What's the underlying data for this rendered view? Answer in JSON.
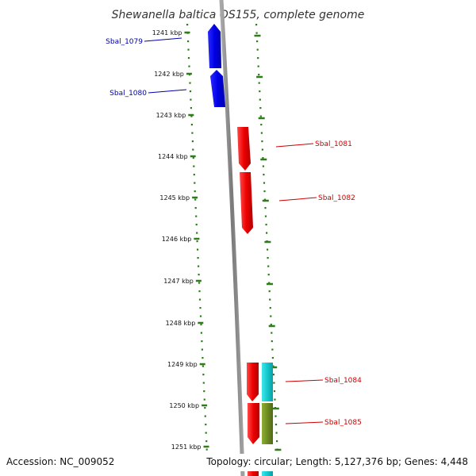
{
  "title": "Shewanella baltica OS155, complete genome",
  "footer": {
    "accession": "Accession: NC_009052",
    "topology": "Topology: circular; Length: 5,127,376 bp; Genes: 4,448"
  },
  "colors": {
    "tick": "#2e7d1a",
    "backbone": "#8c8c8c",
    "forward_gene": "#0000ee",
    "reverse_gene": "#ee0000",
    "teal_gene": "#14c8cc",
    "olive_gene": "#6e8c22",
    "forward_label": "#0000aa",
    "reverse_label": "#cc0000"
  },
  "ticks": [
    "1241 kbp",
    "1242 kbp",
    "1243 kbp",
    "1244 kbp",
    "1245 kbp",
    "1246 kbp",
    "1247 kbp",
    "1248 kbp",
    "1249 kbp",
    "1250 kbp",
    "1251 kbp"
  ],
  "gene_labels": [
    {
      "text": "Sbal_1079",
      "strand": "forward"
    },
    {
      "text": "Sbal_1080",
      "strand": "forward"
    },
    {
      "text": "Sbal_1081",
      "strand": "reverse"
    },
    {
      "text": "Sbal_1082",
      "strand": "reverse"
    },
    {
      "text": "Sbal_1084",
      "strand": "reverse"
    },
    {
      "text": "Sbal_1085",
      "strand": "reverse"
    }
  ]
}
